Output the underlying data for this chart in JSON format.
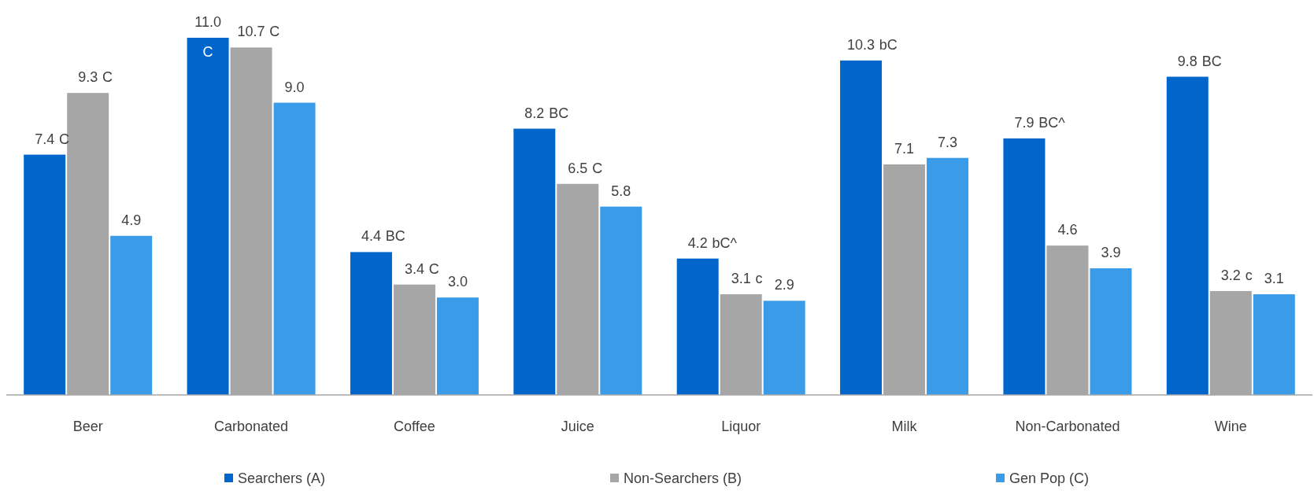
{
  "chart_data": {
    "type": "bar",
    "categories": [
      "Beer",
      "Carbonated",
      "Coffee",
      "Juice",
      "Liquor",
      "Milk",
      "Non-Carbonated",
      "Wine"
    ],
    "series": [
      {
        "name": "Searchers (A)",
        "color": "#0066cc",
        "values": [
          7.4,
          11.0,
          4.4,
          8.2,
          4.2,
          10.3,
          7.9,
          9.8
        ],
        "value_labels": [
          "7.4 C",
          "11.0 C",
          "4.4 BC",
          "8.2 BC",
          "4.2 bC^",
          "10.3 bC",
          "7.9 BC^",
          "9.8 BC"
        ]
      },
      {
        "name": "Non-Searchers (B)",
        "color": "#a6a6a6",
        "values": [
          9.3,
          10.7,
          3.4,
          6.5,
          3.1,
          7.1,
          4.6,
          3.2
        ],
        "value_labels": [
          "9.3 C",
          "10.7 C",
          "3.4 C",
          "6.5 C",
          "3.1 c",
          "7.1",
          "4.6",
          "3.2 c"
        ]
      },
      {
        "name": "Gen Pop (C)",
        "color": "#3a9ce8",
        "values": [
          4.9,
          9.0,
          3.0,
          5.8,
          2.9,
          7.3,
          3.9,
          3.1
        ],
        "value_labels": [
          "4.9",
          "9.0",
          "3.0",
          "5.8",
          "2.9",
          "7.3",
          "3.9",
          "3.1"
        ]
      }
    ],
    "legend": "bottom"
  }
}
